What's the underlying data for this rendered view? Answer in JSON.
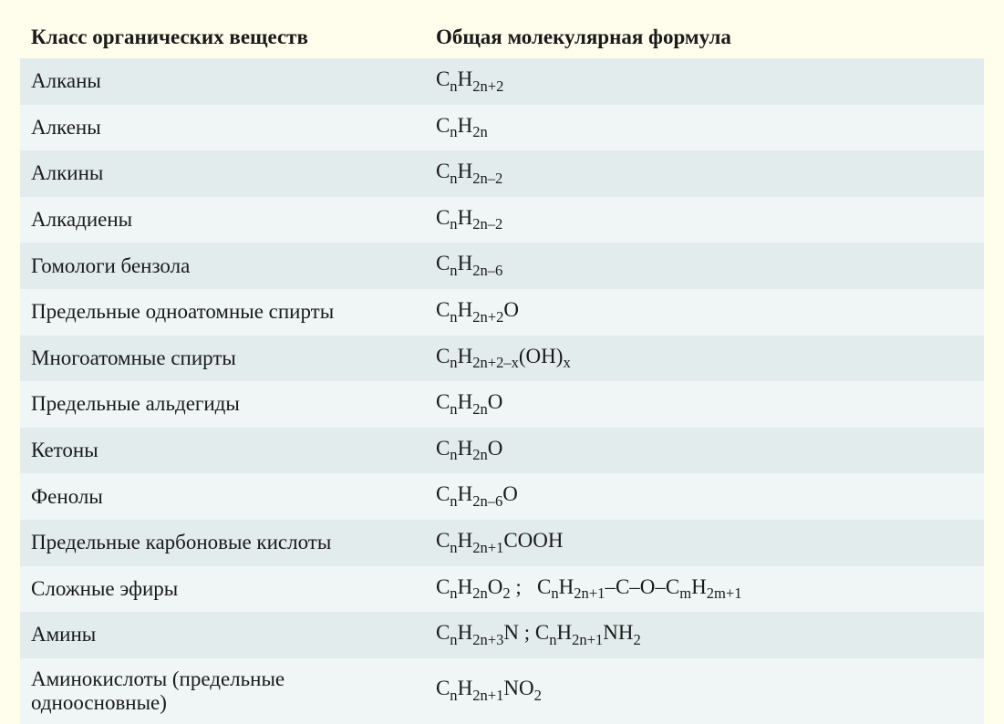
{
  "table": {
    "headers": {
      "class": "Класс органических веществ",
      "formula": "Общая молекулярная формула"
    },
    "rows": [
      {
        "class": "Алканы",
        "formula": "C<sub>n</sub>H<sub>2n+2</sub>"
      },
      {
        "class": "Алкены",
        "formula": "C<sub>n</sub>H<sub>2n</sub>"
      },
      {
        "class": "Алкины",
        "formula": "C<sub>n</sub>H<sub>2n–2</sub>"
      },
      {
        "class": "Алкадиены",
        "formula": "C<sub>n</sub>H<sub>2n–2</sub>"
      },
      {
        "class": "Гомологи бензола",
        "formula": "C<sub>n</sub>H<sub>2n–6</sub>"
      },
      {
        "class": "Предельные одноатомные спирты",
        "formula": "C<sub>n</sub>H<sub>2n+2</sub>O"
      },
      {
        "class": "Многоатомные спирты",
        "formula": "C<sub>n</sub>H<sub>2n+2–x</sub>(OH)<sub>x</sub>"
      },
      {
        "class": "Предельные альдегиды",
        "formula": "C<sub>n</sub>H<sub>2n</sub>O"
      },
      {
        "class": "Кетоны",
        "formula": "C<sub>n</sub>H<sub>2n</sub>O"
      },
      {
        "class": "Фенолы",
        "formula": "C<sub>n</sub>H<sub>2n–6</sub>O"
      },
      {
        "class": "Предельные карбоновые кислоты",
        "formula": "C<sub>n</sub>H<sub>2n+1</sub>COOH"
      },
      {
        "class": "Сложные эфиры",
        "formula": "C<sub>n</sub>H<sub>2n</sub>O<sub>2</sub> ;&nbsp;&nbsp;&nbsp;C<sub>n</sub>H<sub>2n+1</sub>–C–O–C<sub>m</sub>H<sub>2m+1</sub>"
      },
      {
        "class": "Амины",
        "formula": "C<sub>n</sub>H<sub>2n+3</sub>N ; C<sub>n</sub>H<sub>2n+1</sub>NH<sub>2</sub>"
      },
      {
        "class": "Аминокислоты (предельные одноосновные)",
        "formula": "C<sub>n</sub>H<sub>2n+1</sub>NO<sub>2</sub>"
      }
    ],
    "styling": {
      "background_color": "#fffdeb",
      "row_odd_color": "#e3eced",
      "row_even_color": "#f0f5f5",
      "text_color": "#1a1a1a",
      "font_size": 23,
      "header_font_weight": "bold",
      "font_family": "Georgia, serif",
      "column_widths": [
        "42%",
        "58%"
      ]
    }
  }
}
